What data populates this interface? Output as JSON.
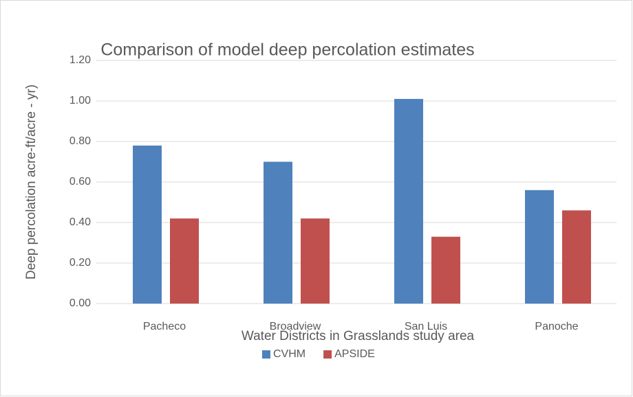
{
  "chart_data": {
    "type": "bar",
    "title": "Comparison of model deep percolation estimates",
    "x_label": "Water Districts in Grasslands study area",
    "y_label": "Deep percolation  acre-ft/acre - yr)",
    "categories": [
      "Pacheco",
      "Broadview",
      "San Luis",
      "Panoche"
    ],
    "series": [
      {
        "name": "CVHM",
        "color": "#4f81bd",
        "values": [
          0.78,
          0.7,
          1.01,
          0.56
        ]
      },
      {
        "name": "APSIDE",
        "color": "#c0504d",
        "values": [
          0.42,
          0.42,
          0.33,
          0.46
        ]
      }
    ],
    "ylim": [
      0,
      1.2
    ],
    "yticks": [
      {
        "value": 0,
        "label": "0.00"
      },
      {
        "value": 0.2,
        "label": "0.20"
      },
      {
        "value": 0.4,
        "label": "0.40"
      },
      {
        "value": 0.6,
        "label": "0.60"
      },
      {
        "value": 0.8,
        "label": "0.80"
      },
      {
        "value": 1.0,
        "label": "1.00"
      },
      {
        "value": 1.2,
        "label": "1.20"
      }
    ],
    "grid": true,
    "legend": "bottom"
  }
}
